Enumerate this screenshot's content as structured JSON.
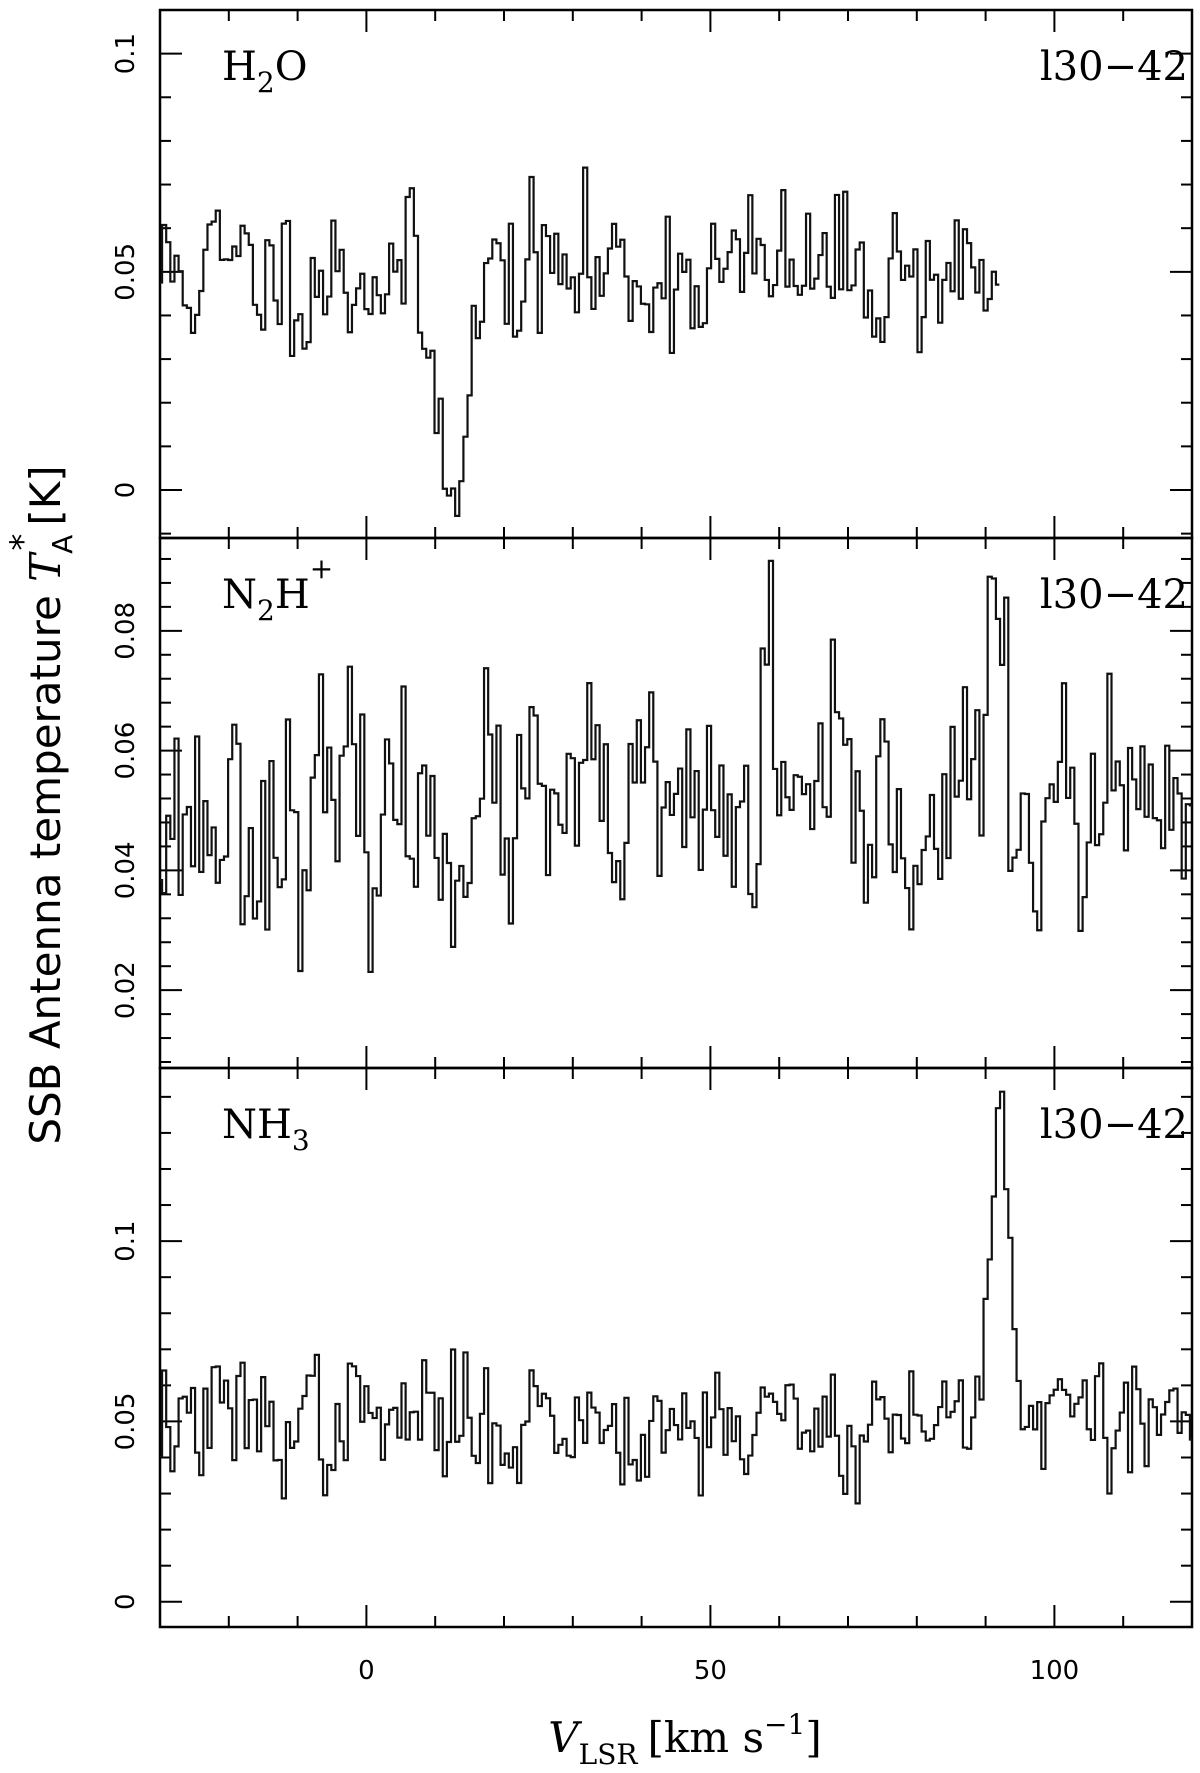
{
  "chart_data": {
    "type": "line",
    "step": true,
    "shared_x": true,
    "xlabel": {
      "symbol": "V",
      "subscript": "LSR",
      "unit_prefix": "[km s",
      "unit_superscript": "−1",
      "unit_suffix": "]"
    },
    "ylabel": {
      "prefix": "SSB Antenna temperature ",
      "symbol": "T",
      "subscript": "A",
      "superscript": "*",
      "unit": "[K]"
    },
    "xlim": [
      -30,
      120
    ],
    "x_ticks": [
      0,
      50,
      100
    ],
    "x_tick_labels": [
      "0",
      "50",
      "100"
    ],
    "panels": [
      {
        "molecule": {
          "base": "H",
          "sub": "2",
          "rest": "O",
          "sup": ""
        },
        "source": "l30−42",
        "ylim": [
          -0.011,
          0.11
        ],
        "y_ticks": [
          0,
          0.05,
          0.1
        ],
        "y_tick_labels": [
          "0",
          "0.05",
          "0.1"
        ],
        "x_end": 92,
        "baseline": 0.05,
        "noise": 0.011,
        "features": [
          {
            "center": 11.5,
            "width": 2.2,
            "amp": -0.036
          },
          {
            "center": 14.5,
            "width": 1.5,
            "amp": -0.018
          }
        ],
        "seed": 11
      },
      {
        "molecule": {
          "base": "N",
          "sub": "2",
          "rest": "H",
          "sup": "+"
        },
        "source": "l30−42",
        "ylim": [
          0.007,
          0.0955
        ],
        "y_ticks": [
          0.02,
          0.04,
          0.06,
          0.08
        ],
        "y_tick_labels": [
          "0.02",
          "0.04",
          "0.06",
          "0.08"
        ],
        "x_end": 120,
        "baseline": 0.049,
        "noise": 0.012,
        "features": [
          {
            "center": 91,
            "width": 1.3,
            "amp": 0.034
          },
          {
            "center": 58.5,
            "width": 0.5,
            "amp": 0.03
          }
        ],
        "seed": 23
      },
      {
        "molecule": {
          "base": "NH",
          "sub": "3",
          "rest": "",
          "sup": ""
        },
        "source": "l30−42",
        "ylim": [
          -0.007,
          0.148
        ],
        "y_ticks": [
          0,
          0.05,
          0.1
        ],
        "y_tick_labels": [
          "0",
          "0.05",
          "0.1"
        ],
        "x_end": 120,
        "baseline": 0.05,
        "noise": 0.011,
        "features": [
          {
            "center": 92,
            "width": 1.6,
            "amp": 0.082
          }
        ],
        "seed": 37
      }
    ]
  }
}
